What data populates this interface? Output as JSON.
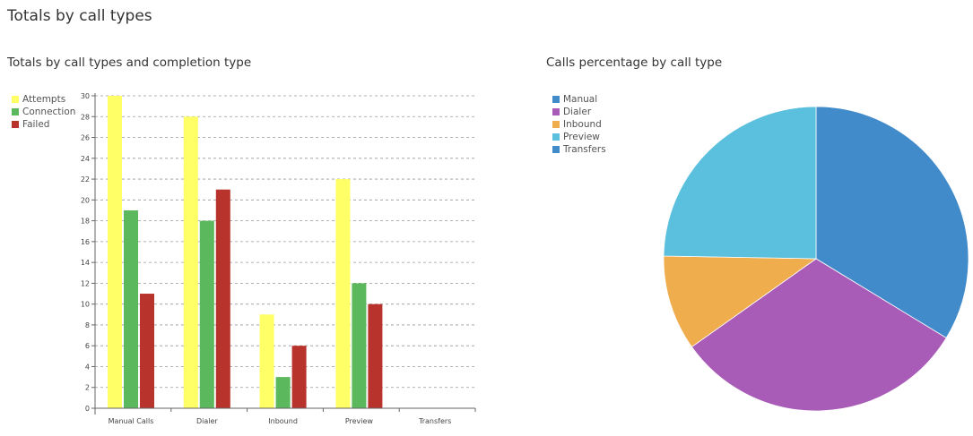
{
  "page": {
    "title": "Totals by call types"
  },
  "bar_panel": {
    "title": "Totals by call types and completion type"
  },
  "pie_panel": {
    "title": "Calls percentage by call type"
  },
  "chart_data": [
    {
      "type": "bar",
      "title": "Totals by call types and completion type",
      "categories": [
        "Manual Calls",
        "Dialer",
        "Inbound",
        "Preview",
        "Transfers"
      ],
      "series": [
        {
          "name": "Attempts",
          "color": "#ffff66",
          "values": [
            30,
            28,
            9,
            22,
            0
          ]
        },
        {
          "name": "Connection",
          "color": "#5cb85c",
          "values": [
            19,
            18,
            3,
            12,
            0
          ]
        },
        {
          "name": "Failed",
          "color": "#b8332b",
          "values": [
            11,
            21,
            6,
            10,
            0
          ]
        }
      ],
      "ylim": [
        0,
        30
      ],
      "yticks": [
        0,
        2,
        4,
        6,
        8,
        10,
        12,
        14,
        16,
        18,
        20,
        22,
        24,
        26,
        28,
        30
      ],
      "grid": true,
      "legend": "top-left"
    },
    {
      "type": "pie",
      "title": "Calls percentage by call type",
      "slices": [
        {
          "label": "Manual",
          "value": 30,
          "color": "#428bca"
        },
        {
          "label": "Dialer",
          "value": 28,
          "color": "#a95bb8"
        },
        {
          "label": "Inbound",
          "value": 9,
          "color": "#f0ad4e"
        },
        {
          "label": "Preview",
          "value": 22,
          "color": "#5bc0de"
        },
        {
          "label": "Transfers",
          "value": 0,
          "color": "#428bca"
        }
      ],
      "legend": "top-left"
    }
  ]
}
